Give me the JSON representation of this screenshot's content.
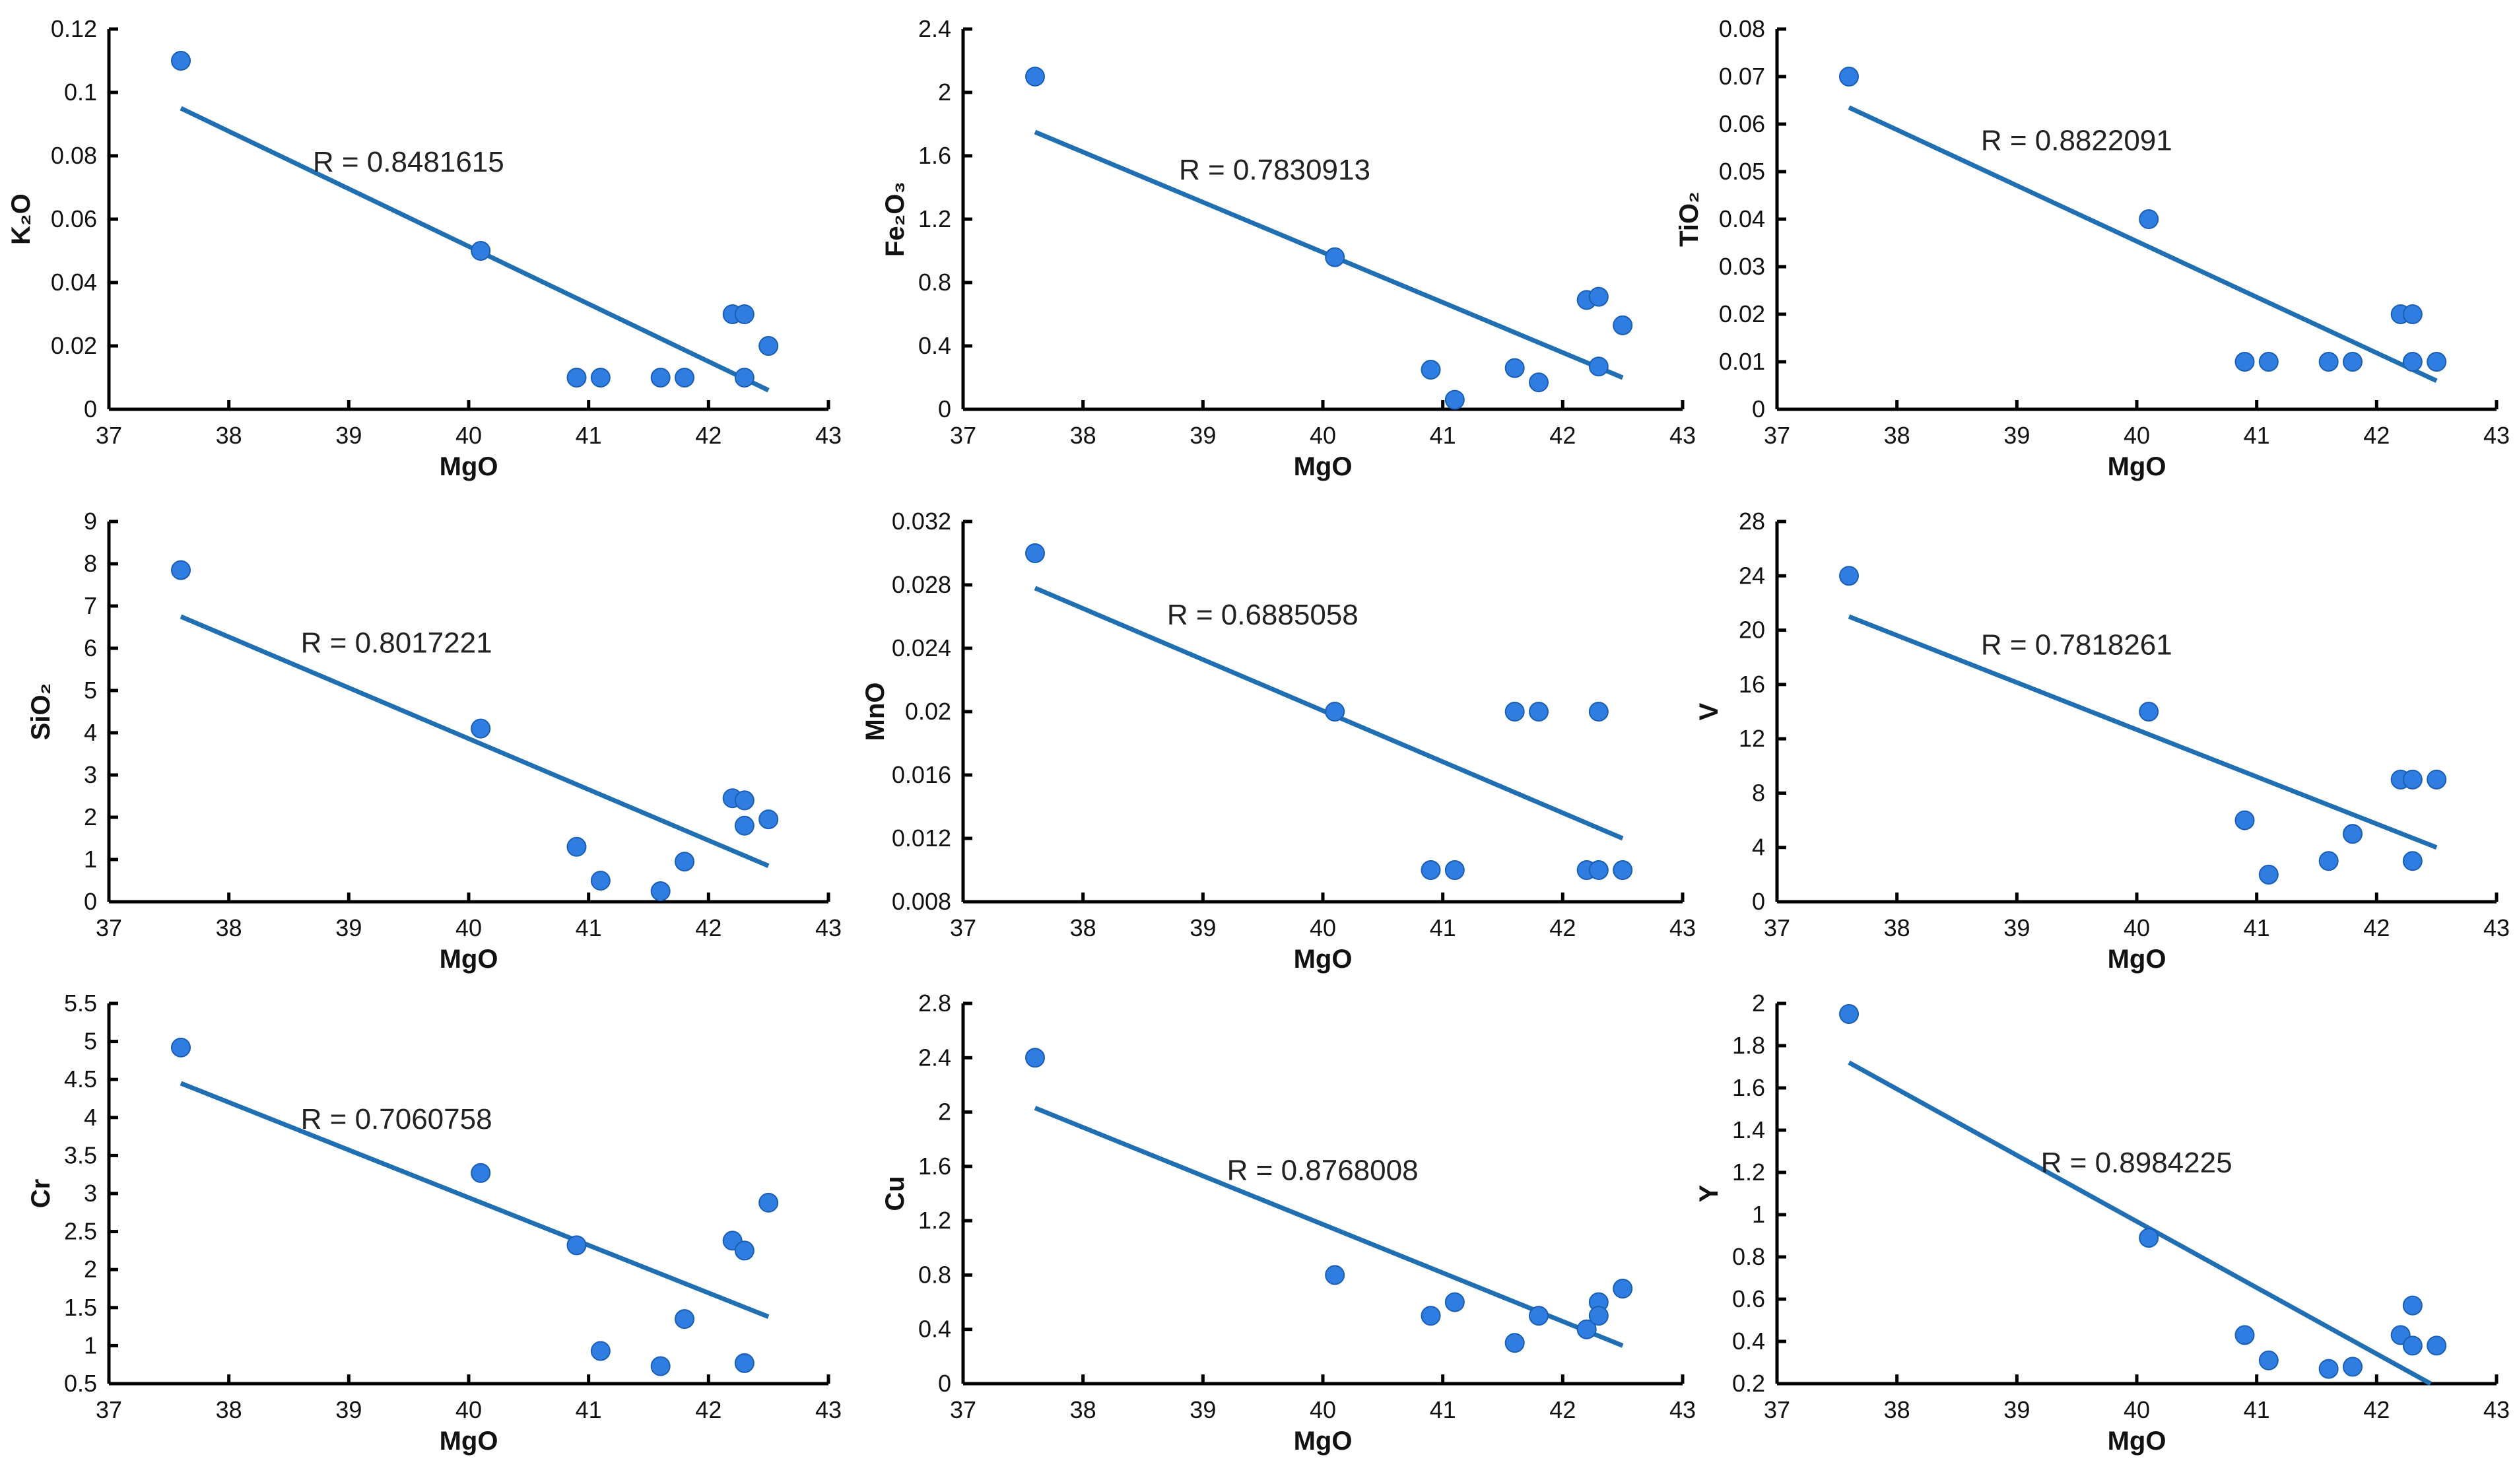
{
  "colors": {
    "point": "#2f7de1",
    "point_edge": "#1a5fb4",
    "trendline": "#1f6fb2",
    "axis": "#000000"
  },
  "chart_data": [
    {
      "type": "scatter",
      "xlabel": "MgO",
      "ylabel": "K₂O",
      "xlim": [
        37,
        43
      ],
      "xticks": [
        "37",
        "38",
        "39",
        "40",
        "41",
        "42",
        "43"
      ],
      "ylim": [
        0,
        0.12
      ],
      "yticks": [
        "0",
        "0.02",
        "0.04",
        "0.06",
        "0.08",
        "0.1",
        "0.12"
      ],
      "x": [
        37.6,
        40.1,
        40.9,
        41.1,
        41.6,
        41.8,
        42.2,
        42.3,
        42.3,
        42.5
      ],
      "y": [
        0.11,
        0.05,
        0.01,
        0.01,
        0.01,
        0.01,
        0.03,
        0.03,
        0.01,
        0.02
      ],
      "trendline": {
        "x": [
          37.6,
          42.5
        ],
        "y": [
          0.095,
          0.006
        ]
      },
      "annotation": "R = 0.8481615",
      "annotation_pos": [
        38.7,
        0.075
      ]
    },
    {
      "type": "scatter",
      "xlabel": "MgO",
      "ylabel": "Fe₂O₃",
      "xlim": [
        37,
        43
      ],
      "xticks": [
        "37",
        "38",
        "39",
        "40",
        "41",
        "42",
        "43"
      ],
      "ylim": [
        0,
        2.4
      ],
      "yticks": [
        "0",
        "0.4",
        "0.8",
        "1.2",
        "1.6",
        "2",
        "2.4"
      ],
      "x": [
        37.6,
        40.1,
        40.9,
        41.1,
        41.6,
        41.8,
        42.2,
        42.3,
        42.3,
        42.5
      ],
      "y": [
        2.1,
        0.96,
        0.25,
        0.06,
        0.26,
        0.17,
        0.69,
        0.71,
        0.27,
        0.53
      ],
      "trendline": {
        "x": [
          37.6,
          42.5
        ],
        "y": [
          1.75,
          0.2
        ]
      },
      "annotation": "R = 0.7830913",
      "annotation_pos": [
        38.8,
        1.45
      ]
    },
    {
      "type": "scatter",
      "xlabel": "MgO",
      "ylabel": "TiO₂",
      "xlim": [
        37,
        43
      ],
      "xticks": [
        "37",
        "38",
        "39",
        "40",
        "41",
        "42",
        "43"
      ],
      "ylim": [
        0,
        0.08
      ],
      "yticks": [
        "0",
        "0.01",
        "0.02",
        "0.03",
        "0.04",
        "0.05",
        "0.06",
        "0.07",
        "0.08"
      ],
      "x": [
        37.6,
        40.1,
        40.9,
        41.1,
        41.6,
        41.8,
        42.2,
        42.3,
        42.3,
        42.5
      ],
      "y": [
        0.07,
        0.04,
        0.01,
        0.01,
        0.01,
        0.01,
        0.02,
        0.02,
        0.01,
        0.01
      ],
      "trendline": {
        "x": [
          37.6,
          42.5
        ],
        "y": [
          0.0635,
          0.006
        ]
      },
      "annotation": "R = 0.8822091",
      "annotation_pos": [
        38.7,
        0.0545
      ]
    },
    {
      "type": "scatter",
      "xlabel": "MgO",
      "ylabel": "SiO₂",
      "xlim": [
        37,
        43
      ],
      "xticks": [
        "37",
        "38",
        "39",
        "40",
        "41",
        "42",
        "43"
      ],
      "ylim": [
        0,
        9
      ],
      "yticks": [
        "0",
        "1",
        "2",
        "3",
        "4",
        "5",
        "6",
        "7",
        "8",
        "9"
      ],
      "x": [
        37.6,
        40.1,
        40.9,
        41.1,
        41.6,
        41.8,
        42.2,
        42.3,
        42.3,
        42.5
      ],
      "y": [
        7.85,
        4.1,
        1.3,
        0.5,
        0.25,
        0.95,
        2.45,
        2.4,
        1.8,
        1.95
      ],
      "trendline": {
        "x": [
          37.6,
          42.5
        ],
        "y": [
          6.75,
          0.85
        ]
      },
      "annotation": "R = 0.8017221",
      "annotation_pos": [
        38.6,
        5.9
      ]
    },
    {
      "type": "scatter",
      "xlabel": "MgO",
      "ylabel": "MnO",
      "xlim": [
        37,
        43
      ],
      "xticks": [
        "37",
        "38",
        "39",
        "40",
        "41",
        "42",
        "43"
      ],
      "ylim": [
        0.008,
        0.032
      ],
      "yticks": [
        "0.008",
        "0.012",
        "0.016",
        "0.02",
        "0.024",
        "0.028",
        "0.032"
      ],
      "x": [
        37.6,
        40.1,
        40.9,
        41.1,
        41.6,
        41.8,
        42.2,
        42.3,
        42.3,
        42.5
      ],
      "y": [
        0.03,
        0.02,
        0.01,
        0.01,
        0.02,
        0.02,
        0.01,
        0.02,
        0.01,
        0.01
      ],
      "trendline": {
        "x": [
          37.6,
          42.5
        ],
        "y": [
          0.0278,
          0.012
        ]
      },
      "annotation": "R = 0.6885058",
      "annotation_pos": [
        38.7,
        0.0255
      ]
    },
    {
      "type": "scatter",
      "xlabel": "MgO",
      "ylabel": "V",
      "xlim": [
        37,
        43
      ],
      "xticks": [
        "37",
        "38",
        "39",
        "40",
        "41",
        "42",
        "43"
      ],
      "ylim": [
        0,
        28
      ],
      "yticks": [
        "0",
        "4",
        "8",
        "12",
        "16",
        "20",
        "24",
        "28"
      ],
      "x": [
        37.6,
        40.1,
        40.9,
        41.1,
        41.6,
        41.8,
        42.2,
        42.3,
        42.3,
        42.5
      ],
      "y": [
        24,
        14,
        6,
        2,
        3,
        5,
        9,
        9,
        3,
        9
      ],
      "trendline": {
        "x": [
          37.6,
          42.5
        ],
        "y": [
          21,
          4
        ]
      },
      "annotation": "R = 0.7818261",
      "annotation_pos": [
        38.7,
        18.2
      ]
    },
    {
      "type": "scatter",
      "xlabel": "MgO",
      "ylabel": "Cr",
      "xlim": [
        37,
        43
      ],
      "xticks": [
        "37",
        "38",
        "39",
        "40",
        "41",
        "42",
        "43"
      ],
      "ylim": [
        0.5,
        5.5
      ],
      "yticks": [
        "0.5",
        "1",
        "1.5",
        "2",
        "2.5",
        "3",
        "3.5",
        "4",
        "4.5",
        "5",
        "5.5"
      ],
      "x": [
        37.6,
        40.1,
        40.9,
        41.1,
        41.6,
        41.8,
        42.2,
        42.3,
        42.3,
        42.5
      ],
      "y": [
        4.92,
        3.27,
        2.32,
        0.93,
        0.73,
        1.35,
        2.38,
        2.25,
        0.77,
        2.88
      ],
      "trendline": {
        "x": [
          37.6,
          42.5
        ],
        "y": [
          4.45,
          1.38
        ]
      },
      "annotation": "R = 0.7060758",
      "annotation_pos": [
        38.6,
        3.85
      ]
    },
    {
      "type": "scatter",
      "xlabel": "MgO",
      "ylabel": "Cu",
      "xlim": [
        37,
        43
      ],
      "xticks": [
        "37",
        "38",
        "39",
        "40",
        "41",
        "42",
        "43"
      ],
      "ylim": [
        0,
        2.8
      ],
      "yticks": [
        "0",
        "0.4",
        "0.8",
        "1.2",
        "1.6",
        "2",
        "2.4",
        "2.8"
      ],
      "x": [
        37.6,
        40.1,
        40.9,
        41.1,
        41.6,
        41.8,
        42.2,
        42.3,
        42.3,
        42.5
      ],
      "y": [
        2.4,
        0.8,
        0.5,
        0.6,
        0.3,
        0.5,
        0.4,
        0.6,
        0.5,
        0.7
      ],
      "trendline": {
        "x": [
          37.6,
          42.5
        ],
        "y": [
          2.03,
          0.28
        ]
      },
      "annotation": "R = 0.8768008",
      "annotation_pos": [
        39.2,
        1.5
      ]
    },
    {
      "type": "scatter",
      "xlabel": "MgO",
      "ylabel": "Y",
      "xlim": [
        37,
        43
      ],
      "xticks": [
        "37",
        "38",
        "39",
        "40",
        "41",
        "42",
        "43"
      ],
      "ylim": [
        0.2,
        2.0
      ],
      "yticks": [
        "0.2",
        "0.4",
        "0.6",
        "0.8",
        "1",
        "1.2",
        "1.4",
        "1.6",
        "1.8",
        "2"
      ],
      "x": [
        37.6,
        40.1,
        40.9,
        41.1,
        41.6,
        41.8,
        42.2,
        42.3,
        42.3,
        42.5
      ],
      "y": [
        1.95,
        0.89,
        0.43,
        0.31,
        0.27,
        0.28,
        0.43,
        0.57,
        0.38,
        0.38
      ],
      "trendline": {
        "x": [
          37.6,
          42.45
        ],
        "y": [
          1.72,
          0.2
        ]
      },
      "annotation": "R = 0.8984225",
      "annotation_pos": [
        39.2,
        1.2
      ]
    }
  ]
}
